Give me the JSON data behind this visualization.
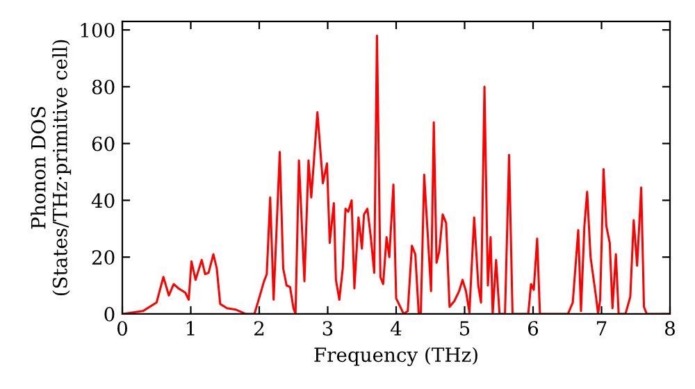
{
  "chart_data": {
    "type": "line",
    "xlabel": "Frequency (THz)",
    "ylabel": "Phonon DOS\n(States/THz·primitive cell)",
    "xlim": [
      0,
      8
    ],
    "ylim": [
      0,
      103
    ],
    "xticks": [
      0,
      1,
      2,
      3,
      4,
      5,
      6,
      7,
      8
    ],
    "yticks": [
      0,
      20,
      40,
      60,
      80,
      100
    ],
    "grid": false,
    "marker": "none",
    "line_style": "solid",
    "series": [
      {
        "color": "#ff0000",
        "x": [
          0,
          0.3,
          0.5,
          0.6,
          0.68,
          0.75,
          0.82,
          0.92,
          0.97,
          1.01,
          1.07,
          1.16,
          1.21,
          1.26,
          1.33,
          1.38,
          1.43,
          1.53,
          1.66,
          1.8,
          1.93,
          2.01,
          2.07,
          2.11,
          2.16,
          2.21,
          2.3,
          2.35,
          2.4,
          2.45,
          2.5,
          2.53,
          2.58,
          2.66,
          2.72,
          2.76,
          2.85,
          2.93,
          2.99,
          3.03,
          3.09,
          3.12,
          3.17,
          3.22,
          3.26,
          3.3,
          3.35,
          3.39,
          3.45,
          3.5,
          3.53,
          3.58,
          3.63,
          3.68,
          3.72,
          3.77,
          3.81,
          3.86,
          3.9,
          3.96,
          4.0,
          4.11,
          4.17,
          4.23,
          4.28,
          4.33,
          4.36,
          4.41,
          4.51,
          4.55,
          4.59,
          4.63,
          4.68,
          4.73,
          4.78,
          4.85,
          4.92,
          4.97,
          5.02,
          5.07,
          5.14,
          5.2,
          5.24,
          5.29,
          5.34,
          5.38,
          5.41,
          5.46,
          5.51,
          5.59,
          5.65,
          5.7,
          5.93,
          5.97,
          6.01,
          6.06,
          6.1,
          6.51,
          6.58,
          6.66,
          6.7,
          6.75,
          6.79,
          6.84,
          6.92,
          6.95,
          6.98,
          7.03,
          7.07,
          7.12,
          7.16,
          7.21,
          7.25,
          7.35,
          7.42,
          7.47,
          7.52,
          7.58,
          7.62,
          7.66,
          8.0
        ],
        "values": [
          0,
          1,
          4,
          13,
          6.5,
          10.5,
          9,
          7.5,
          5,
          18.5,
          12,
          19,
          14,
          14.5,
          21,
          16,
          3.5,
          2,
          1.5,
          0,
          0,
          6.5,
          11.5,
          14,
          41,
          5,
          57,
          16,
          10,
          9.5,
          2,
          0,
          54,
          11.5,
          54,
          41,
          71,
          46,
          53,
          25,
          39,
          12,
          5,
          16,
          37,
          36,
          40,
          9,
          34,
          23,
          35,
          37,
          27,
          14.5,
          98,
          13,
          10.5,
          27,
          20,
          45.5,
          5.5,
          0,
          1,
          24,
          21,
          0,
          0,
          49,
          8,
          67.5,
          18,
          22,
          35,
          32,
          2.5,
          4.5,
          8,
          12,
          8,
          0.5,
          34,
          10,
          4,
          80,
          10,
          27,
          0,
          19,
          0,
          0,
          56,
          0,
          0,
          10.5,
          8.5,
          26.5,
          0,
          0,
          4,
          29.5,
          1,
          31,
          43,
          20,
          6,
          0,
          5,
          51,
          31,
          25,
          2,
          21,
          0,
          0,
          6,
          33,
          17,
          44.5,
          2.5,
          0,
          0
        ]
      }
    ]
  }
}
